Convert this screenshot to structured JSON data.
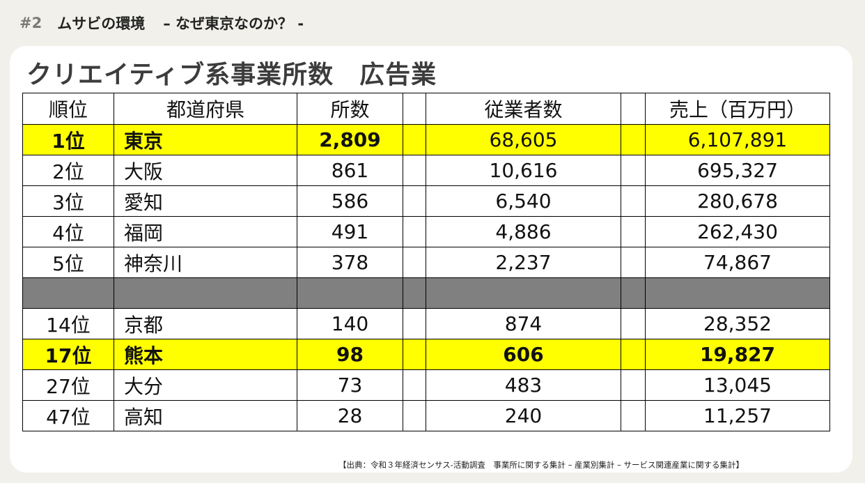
{
  "header": {
    "number": "#2",
    "title": "ムサビの環境",
    "subtitle": "– なぜ東京なのか？ -"
  },
  "main": {
    "title": "クリエイティブ系事業所数　広告業",
    "table": {
      "headers": [
        "順位",
        "都道府県",
        "所数",
        "",
        "従業者数",
        "",
        "売上（百万円）"
      ],
      "rows_top": [
        {
          "rank": "1位",
          "pref": "東京",
          "offices": "2,809",
          "employees": "68,605",
          "sales": "6,107,891"
        },
        {
          "rank": "2位",
          "pref": "大阪",
          "offices": "861",
          "employees": "10,616",
          "sales": "695,327"
        },
        {
          "rank": "3位",
          "pref": "愛知",
          "offices": "586",
          "employees": "6,540",
          "sales": "280,678"
        },
        {
          "rank": "4位",
          "pref": "福岡",
          "offices": "491",
          "employees": "4,886",
          "sales": "262,430"
        },
        {
          "rank": "5位",
          "pref": "神奈川",
          "offices": "378",
          "employees": "2,237",
          "sales": "74,867"
        }
      ],
      "rows_bottom": [
        {
          "rank": "14位",
          "pref": "京都",
          "offices": "140",
          "employees": "874",
          "sales": "28,352"
        },
        {
          "rank": "17位",
          "pref": "熊本",
          "offices": "98",
          "employees": "606",
          "sales": "19,827"
        },
        {
          "rank": "27位",
          "pref": "大分",
          "offices": "73",
          "employees": "483",
          "sales": "13,045"
        },
        {
          "rank": "47位",
          "pref": "高知",
          "offices": "28",
          "employees": "240",
          "sales": "11,257"
        }
      ]
    }
  },
  "footer": {
    "source": "【出典：令和３年経済センサス-活動調査　事業所に関する集計 – 産業別集計 – サービス関連産業に関する集計】"
  },
  "colors": {
    "highlight": "#ffff00",
    "separator": "#808080",
    "background": "#f1f0ea"
  }
}
